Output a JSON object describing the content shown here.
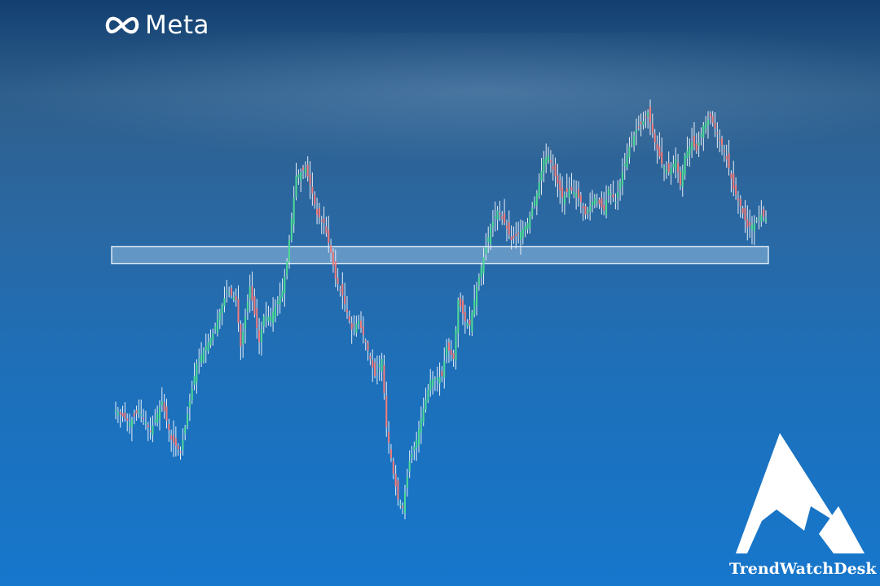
{
  "logo": {
    "text": "Meta",
    "icon": "meta-infinity-icon"
  },
  "watermark": {
    "text": "TrendWatchDesk",
    "icon": "mountain-peak-icon"
  },
  "colors": {
    "up": "#4fd996",
    "down": "#f07c7c",
    "wick": "#e8eef4",
    "zone_fill": "#9ec3e2",
    "zone_border": "#e6f0f8"
  },
  "chart_data": {
    "type": "candlestick",
    "title": "",
    "xlabel": "",
    "ylabel": "",
    "grid": false,
    "legend": "none",
    "ylim": [
      0,
      100
    ],
    "close_path": [
      [
        0,
        28
      ],
      [
        6,
        25
      ],
      [
        10,
        28
      ],
      [
        15,
        23
      ],
      [
        20,
        30
      ],
      [
        24,
        21
      ],
      [
        28,
        18
      ],
      [
        35,
        39
      ],
      [
        42,
        46
      ],
      [
        48,
        56
      ],
      [
        52,
        54
      ],
      [
        54,
        43
      ],
      [
        58,
        57
      ],
      [
        62,
        44
      ],
      [
        64,
        50
      ],
      [
        67,
        50
      ],
      [
        72,
        56
      ],
      [
        74,
        63
      ],
      [
        76,
        73
      ],
      [
        78,
        83
      ],
      [
        82,
        85
      ],
      [
        85,
        79
      ],
      [
        87,
        74
      ],
      [
        90,
        72
      ],
      [
        93,
        65
      ],
      [
        95,
        59
      ],
      [
        98,
        55
      ],
      [
        102,
        47
      ],
      [
        105,
        49
      ],
      [
        108,
        44
      ],
      [
        112,
        36
      ],
      [
        115,
        40
      ],
      [
        117,
        24
      ],
      [
        120,
        13
      ],
      [
        122,
        7
      ],
      [
        124,
        5
      ],
      [
        127,
        16
      ],
      [
        130,
        21
      ],
      [
        132,
        26
      ],
      [
        136,
        35
      ],
      [
        141,
        36
      ],
      [
        143,
        43
      ],
      [
        146,
        40
      ],
      [
        148,
        54
      ],
      [
        151,
        49
      ],
      [
        153,
        48
      ],
      [
        156,
        57
      ],
      [
        159,
        64
      ],
      [
        162,
        71
      ],
      [
        165,
        75
      ],
      [
        168,
        72
      ],
      [
        171,
        68
      ],
      [
        175,
        70
      ],
      [
        178,
        72
      ],
      [
        182,
        79
      ],
      [
        185,
        87
      ],
      [
        187,
        88
      ],
      [
        190,
        83
      ],
      [
        193,
        78
      ],
      [
        196,
        80
      ],
      [
        199,
        79
      ],
      [
        201,
        77
      ],
      [
        203,
        74
      ],
      [
        207,
        78
      ],
      [
        211,
        75
      ],
      [
        213,
        80
      ],
      [
        216,
        77
      ],
      [
        219,
        84
      ],
      [
        222,
        90
      ],
      [
        225,
        94
      ],
      [
        228,
        96
      ],
      [
        230,
        98
      ],
      [
        233,
        91
      ],
      [
        236,
        86
      ],
      [
        239,
        84
      ],
      [
        242,
        87
      ],
      [
        244,
        81
      ],
      [
        246,
        88
      ],
      [
        249,
        91
      ],
      [
        251,
        89
      ],
      [
        254,
        95
      ],
      [
        257,
        97
      ],
      [
        260,
        93
      ],
      [
        263,
        89
      ],
      [
        265,
        85
      ],
      [
        267,
        80
      ],
      [
        270,
        76
      ],
      [
        273,
        71
      ],
      [
        276,
        72
      ],
      [
        279,
        74
      ],
      [
        281,
        73
      ]
    ],
    "zones": [
      {
        "type": "support-resistance",
        "y_bottom": 62.5,
        "y_top": 66.5
      }
    ]
  }
}
